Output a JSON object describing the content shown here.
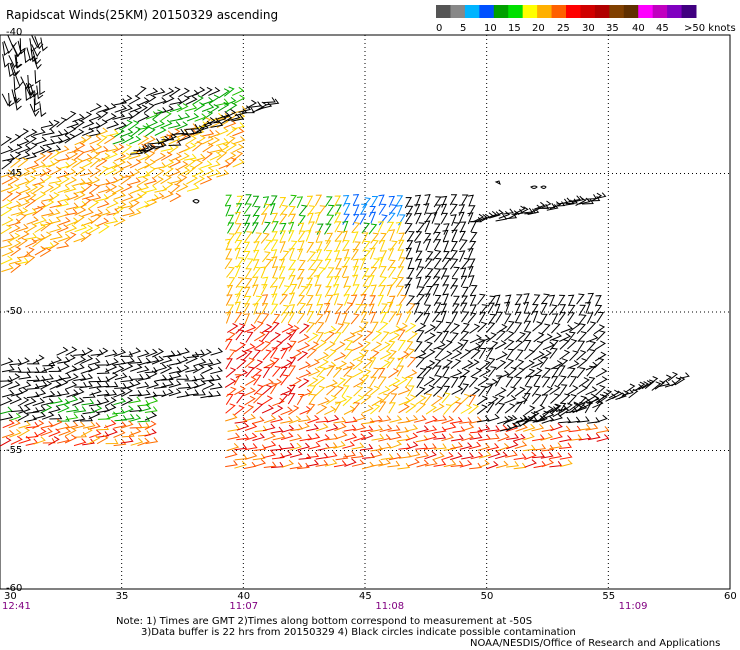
{
  "title": "Rapidscat Winds(25KM) 20150329 ascending",
  "legend": {
    "labels": [
      "0",
      "5",
      "10",
      "15",
      "20",
      "25",
      "30",
      "35",
      "40",
      "45",
      ">50 knots"
    ],
    "colors": [
      "#555555",
      "#888888",
      "#00b4ff",
      "#0050ff",
      "#00a000",
      "#00e000",
      "#ffff00",
      "#ffb000",
      "#ff6000",
      "#ff0000",
      "#d00000",
      "#b00000",
      "#804000",
      "#603000",
      "#ff00ff",
      "#c000c0",
      "#8000c0",
      "#400080"
    ]
  },
  "map": {
    "lon_labels": [
      "30",
      "35",
      "40",
      "45",
      "50",
      "55",
      "60"
    ],
    "lat_labels": [
      "-45",
      "-50",
      "-55",
      "-60"
    ],
    "lat_top_label": "-40",
    "time_labels": [
      {
        "lon": 30,
        "text": "12:41"
      },
      {
        "lon": 40,
        "text": "11:07"
      },
      {
        "lon": 46,
        "text": "11:08"
      },
      {
        "lon": 56,
        "text": "11:09"
      }
    ]
  },
  "note": {
    "line1": "Note: 1) Times are GMT 2)Times along bottom correspond to measurement at -50S",
    "line2": "3)Data buffer is 22 hrs from 20150329 4) Black circles indicate possible contamination"
  },
  "credit": "NOAA/NESDIS/Office of Research and Applications"
}
